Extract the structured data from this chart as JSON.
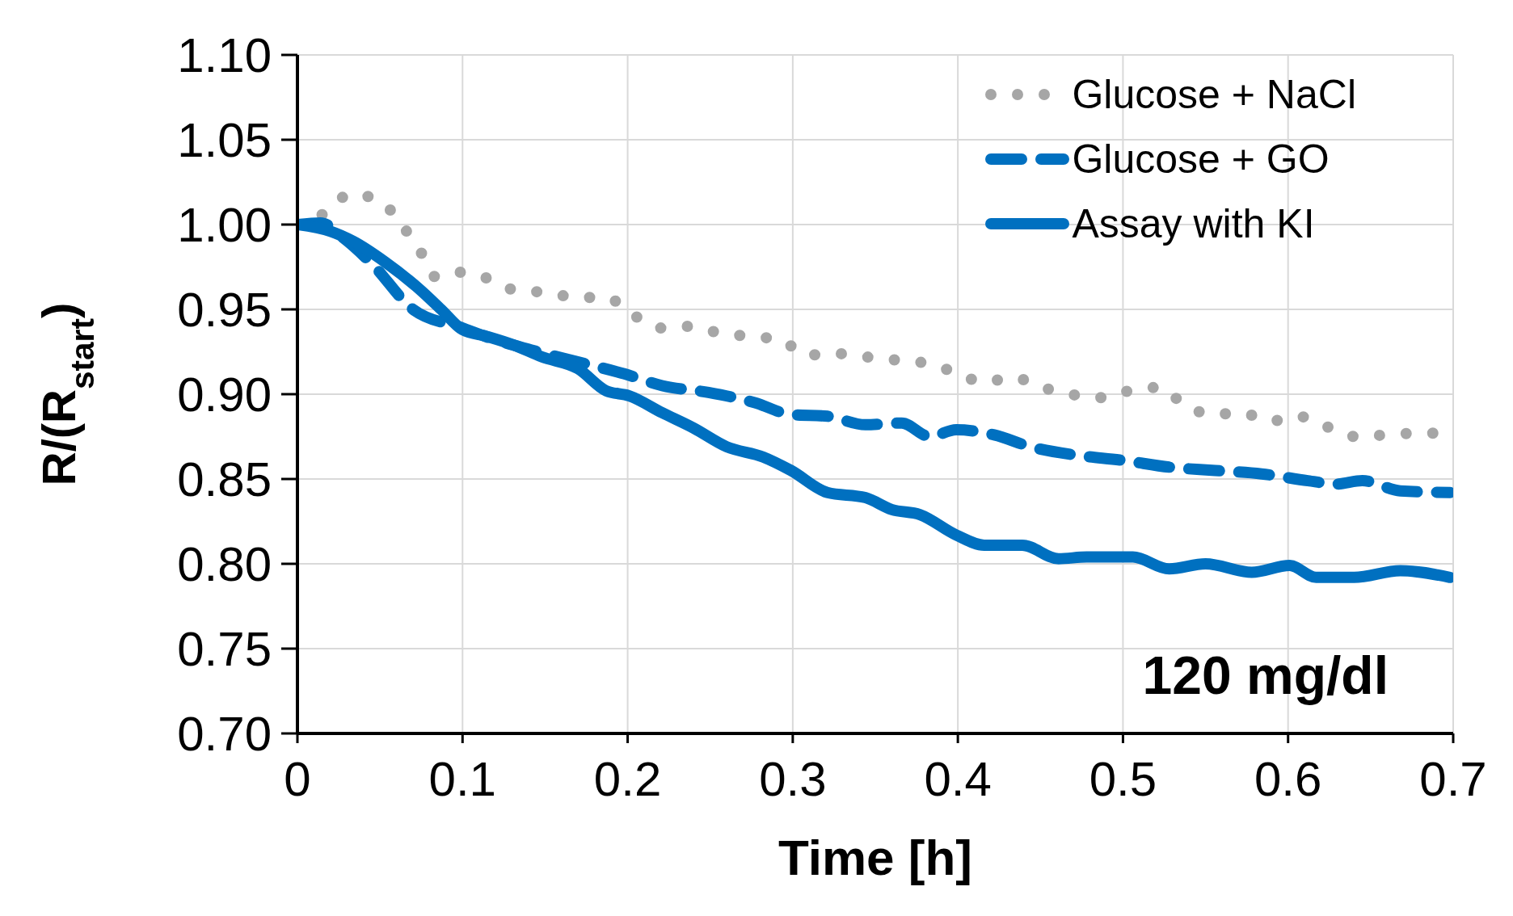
{
  "chart_data": {
    "type": "line",
    "xlabel": "Time [h]",
    "ylabel": "R/(R$_{start}$)",
    "xlim": [
      0,
      0.7
    ],
    "xticks": [
      0,
      0.1,
      0.2,
      0.3,
      0.4,
      0.5,
      0.6,
      0.7
    ],
    "ylim": [
      0.7,
      1.1
    ],
    "yticks": [
      {
        "value": 0.7,
        "label": "0.70"
      },
      {
        "value": 0.75,
        "label": "0.75"
      },
      {
        "value": 0.8,
        "label": "0.80"
      },
      {
        "value": 0.85,
        "label": "0.85"
      },
      {
        "value": 0.9,
        "label": "0.90"
      },
      {
        "value": 0.95,
        "label": "0.95"
      },
      {
        "value": 1.0,
        "label": "1.00"
      },
      {
        "value": 1.05,
        "label": "1.05"
      },
      {
        "value": 1.1,
        "label": "1.10"
      }
    ],
    "grid": true,
    "legend": "top right",
    "marker": "none",
    "annotations": [
      "120 mg/dl"
    ],
    "series": [
      {
        "name": "Glucose + NaCl",
        "color": "#a6a6a6",
        "line_style": "dotted",
        "x": [
          0,
          0.017,
          0.032,
          0.05,
          0.063,
          0.074,
          0.084,
          0.1,
          0.116,
          0.133,
          0.151,
          0.169,
          0.187,
          0.203,
          0.22,
          0.238,
          0.256,
          0.275,
          0.293,
          0.308,
          0.326,
          0.344,
          0.364,
          0.382,
          0.398,
          0.416,
          0.433,
          0.451,
          0.468,
          0.487,
          0.504,
          0.522,
          0.537,
          0.554,
          0.572,
          0.589,
          0.606,
          0.623,
          0.641,
          0.659,
          0.678,
          0.696
        ],
        "values": [
          1.0,
          1.007,
          1.018,
          1.014,
          1.0,
          0.985,
          0.969,
          0.972,
          0.968,
          0.961,
          0.96,
          0.957,
          0.957,
          0.947,
          0.939,
          0.94,
          0.936,
          0.934,
          0.932,
          0.923,
          0.924,
          0.922,
          0.92,
          0.918,
          0.913,
          0.907,
          0.91,
          0.904,
          0.9,
          0.898,
          0.902,
          0.904,
          0.894,
          0.888,
          0.889,
          0.884,
          0.887,
          0.881,
          0.875,
          0.876,
          0.877,
          0.877
        ]
      },
      {
        "name": "Glucose + GO",
        "color": "#0070c0",
        "line_style": "dashed",
        "x": [
          0,
          0.014,
          0.028,
          0.045,
          0.07,
          0.1,
          0.12,
          0.142,
          0.17,
          0.198,
          0.221,
          0.249,
          0.277,
          0.299,
          0.321,
          0.344,
          0.366,
          0.383,
          0.399,
          0.422,
          0.444,
          0.472,
          0.5,
          0.528,
          0.556,
          0.584,
          0.612,
          0.629,
          0.645,
          0.668,
          0.698
        ],
        "values": [
          1.0,
          1.001,
          0.992,
          0.977,
          0.95,
          0.939,
          0.932,
          0.926,
          0.919,
          0.912,
          0.905,
          0.901,
          0.895,
          0.888,
          0.887,
          0.882,
          0.883,
          0.875,
          0.879,
          0.876,
          0.869,
          0.864,
          0.861,
          0.857,
          0.855,
          0.853,
          0.849,
          0.847,
          0.849,
          0.843,
          0.842
        ]
      },
      {
        "name": "Assay with KI",
        "color": "#0070c0",
        "line_style": "solid",
        "x": [
          0,
          0.02,
          0.034,
          0.053,
          0.075,
          0.087,
          0.1,
          0.115,
          0.131,
          0.148,
          0.17,
          0.187,
          0.201,
          0.221,
          0.24,
          0.26,
          0.282,
          0.299,
          0.321,
          0.344,
          0.36,
          0.377,
          0.399,
          0.416,
          0.439,
          0.461,
          0.478,
          0.506,
          0.528,
          0.55,
          0.578,
          0.601,
          0.617,
          0.64,
          0.668,
          0.698
        ],
        "values": [
          1.0,
          0.996,
          0.99,
          0.978,
          0.961,
          0.95,
          0.938,
          0.934,
          0.929,
          0.922,
          0.915,
          0.902,
          0.899,
          0.889,
          0.88,
          0.869,
          0.863,
          0.855,
          0.842,
          0.839,
          0.832,
          0.829,
          0.817,
          0.811,
          0.811,
          0.803,
          0.804,
          0.804,
          0.797,
          0.8,
          0.795,
          0.799,
          0.792,
          0.792,
          0.796,
          0.792
        ]
      }
    ]
  }
}
